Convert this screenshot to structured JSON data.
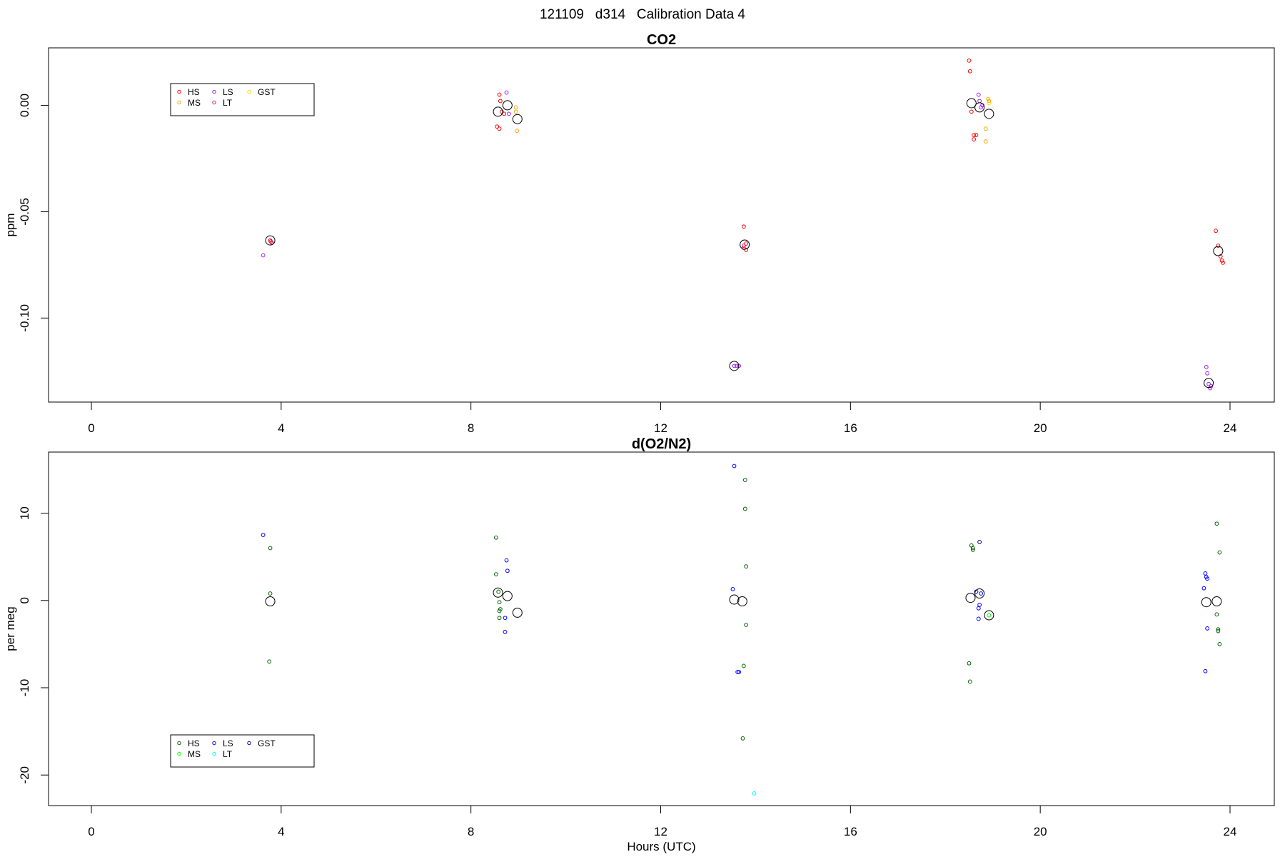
{
  "header": {
    "title": "121109   d314   Calibration Data 4"
  },
  "chart_data": [
    {
      "type": "scatter",
      "title": "CO2",
      "xlabel": "",
      "ylabel": "ppm",
      "xlim": [
        -1.8,
        24.8
      ],
      "ylim": [
        -0.1395,
        0.027
      ],
      "x_ticks": [
        0,
        4,
        8,
        12,
        16,
        20,
        24
      ],
      "y_ticks": [
        -0.1,
        -0.05,
        0.0
      ],
      "y_tick_labels": [
        "-0.10",
        "-0.05",
        "0.00"
      ],
      "grid": false,
      "legend": {
        "placement": "top-left",
        "entries": [
          {
            "label": "HS",
            "color": "#ff0000"
          },
          {
            "label": "LS",
            "color": "#a020f0"
          },
          {
            "label": "GST",
            "color": "#ffd700"
          },
          {
            "label": "MS",
            "color": "#ffa500"
          },
          {
            "label": "LT",
            "color": "#c71585"
          }
        ]
      },
      "series": [
        {
          "name": "HS",
          "color": "#ff0000",
          "points": [
            [
              3.77,
              -0.0635
            ],
            [
              3.8,
              -0.0645
            ],
            [
              8.55,
              -0.01
            ],
            [
              8.6,
              -0.011
            ],
            [
              8.6,
              0.005
            ],
            [
              8.62,
              0.002
            ],
            [
              8.65,
              -0.003
            ],
            [
              8.7,
              -0.004
            ],
            [
              13.75,
              -0.057
            ],
            [
              13.75,
              -0.067
            ],
            [
              13.8,
              -0.065
            ],
            [
              13.8,
              -0.068
            ],
            [
              18.5,
              0.021
            ],
            [
              18.52,
              0.016
            ],
            [
              18.55,
              -0.003
            ],
            [
              18.6,
              -0.014
            ],
            [
              18.6,
              -0.016
            ],
            [
              18.65,
              -0.014
            ],
            [
              23.7,
              -0.059
            ],
            [
              23.75,
              -0.066
            ],
            [
              23.8,
              -0.071
            ],
            [
              23.83,
              -0.073
            ],
            [
              23.85,
              -0.074
            ]
          ]
        },
        {
          "name": "MS",
          "color": "#ffa500",
          "points": [
            [
              8.95,
              -0.001
            ],
            [
              8.95,
              -0.003
            ],
            [
              8.97,
              -0.012
            ],
            [
              18.85,
              -0.011
            ],
            [
              18.85,
              -0.017
            ],
            [
              18.9,
              0.003
            ],
            [
              18.92,
              0.002
            ]
          ]
        },
        {
          "name": "LS",
          "color": "#a020f0",
          "points": [
            [
              3.62,
              -0.0705
            ],
            [
              8.75,
              0.006
            ],
            [
              8.8,
              -0.004
            ],
            [
              13.55,
              -0.1225
            ],
            [
              13.6,
              -0.1225
            ],
            [
              13.65,
              -0.1225
            ],
            [
              18.7,
              0.005
            ],
            [
              18.72,
              0.002
            ],
            [
              18.75,
              -0.001
            ],
            [
              18.78,
              0.0
            ],
            [
              23.5,
              -0.123
            ],
            [
              23.52,
              -0.126
            ],
            [
              23.55,
              -0.131
            ],
            [
              23.58,
              -0.133
            ],
            [
              23.6,
              -0.132
            ]
          ]
        },
        {
          "name": "LT",
          "color": "#c71585",
          "points": [
            [
              3.78,
              -0.064
            ],
            [
              13.75,
              -0.066
            ]
          ]
        },
        {
          "name": "GST",
          "color": "#ffd700",
          "points": [
            [
              18.92,
              0.001
            ]
          ]
        }
      ],
      "means": [
        [
          3.77,
          -0.0635
        ],
        [
          8.57,
          -0.003
        ],
        [
          8.77,
          0.0
        ],
        [
          8.98,
          -0.0065
        ],
        [
          13.55,
          -0.1225
        ],
        [
          13.77,
          -0.0655
        ],
        [
          18.55,
          0.001
        ],
        [
          18.72,
          -0.001
        ],
        [
          18.92,
          -0.004
        ],
        [
          23.55,
          -0.1305
        ],
        [
          23.75,
          -0.0685
        ]
      ]
    },
    {
      "type": "scatter",
      "title": "d(O2/N2)",
      "xlabel": "Hours (UTC)",
      "ylabel": "per meg",
      "xlim": [
        -1.8,
        24.8
      ],
      "ylim": [
        -23.5,
        17.0
      ],
      "x_ticks": [
        0,
        4,
        8,
        12,
        16,
        20,
        24
      ],
      "y_ticks": [
        -20,
        -10,
        0,
        10
      ],
      "y_tick_labels": [
        "-20",
        "-10",
        "0",
        "10"
      ],
      "grid": false,
      "legend": {
        "placement": "bottom-left",
        "entries": [
          {
            "label": "HS",
            "color": "#006400"
          },
          {
            "label": "LS",
            "color": "#0000ff"
          },
          {
            "label": "GST",
            "color": "#00008b"
          },
          {
            "label": "MS",
            "color": "#00ff00"
          },
          {
            "label": "LT",
            "color": "#00ffff"
          }
        ]
      },
      "series": [
        {
          "name": "HS",
          "color": "#006400",
          "points": [
            [
              3.77,
              6.0
            ],
            [
              3.77,
              0.8
            ],
            [
              3.75,
              -7.0
            ],
            [
              8.53,
              7.2
            ],
            [
              8.53,
              3.0
            ],
            [
              8.58,
              1.0
            ],
            [
              8.6,
              -0.2
            ],
            [
              8.6,
              -1.2
            ],
            [
              8.62,
              -1.0
            ],
            [
              8.6,
              -2.0
            ],
            [
              13.78,
              13.8
            ],
            [
              13.78,
              10.5
            ],
            [
              13.8,
              3.9
            ],
            [
              13.8,
              -2.8
            ],
            [
              13.75,
              -7.5
            ],
            [
              13.73,
              -15.8
            ],
            [
              18.5,
              -7.2
            ],
            [
              18.52,
              -9.3
            ],
            [
              18.55,
              6.3
            ],
            [
              18.58,
              5.8
            ],
            [
              18.58,
              6.0
            ],
            [
              23.72,
              8.8
            ],
            [
              23.78,
              5.5
            ],
            [
              23.72,
              -1.6
            ],
            [
              23.75,
              -3.3
            ],
            [
              23.75,
              -3.5
            ],
            [
              23.78,
              -5.0
            ]
          ]
        },
        {
          "name": "MS",
          "color": "#00ff00",
          "points": [
            [
              18.92,
              -1.7
            ]
          ]
        },
        {
          "name": "LS",
          "color": "#0000ff",
          "points": [
            [
              3.62,
              7.5
            ],
            [
              8.75,
              4.6
            ],
            [
              8.77,
              3.4
            ],
            [
              8.72,
              -2.0
            ],
            [
              8.72,
              -3.6
            ],
            [
              13.55,
              15.4
            ],
            [
              13.52,
              1.3
            ],
            [
              13.62,
              -8.2
            ],
            [
              13.65,
              -8.2
            ],
            [
              18.65,
              1.0
            ],
            [
              18.7,
              -0.9
            ],
            [
              18.7,
              -2.1
            ],
            [
              18.72,
              -0.5
            ],
            [
              18.75,
              0.8
            ],
            [
              23.45,
              1.4
            ],
            [
              23.48,
              3.1
            ],
            [
              23.5,
              2.7
            ],
            [
              23.52,
              2.5
            ],
            [
              23.52,
              -3.2
            ],
            [
              23.48,
              -8.1
            ]
          ]
        },
        {
          "name": "GST",
          "color": "#00008b",
          "points": [
            [
              18.72,
              6.7
            ]
          ]
        },
        {
          "name": "LT",
          "color": "#00ffff",
          "points": [
            [
              13.97,
              -22.1
            ]
          ]
        }
      ],
      "means": [
        [
          3.77,
          -0.1
        ],
        [
          8.57,
          0.9
        ],
        [
          8.77,
          0.5
        ],
        [
          8.98,
          -1.4
        ],
        [
          13.55,
          0.1
        ],
        [
          13.72,
          -0.1
        ],
        [
          18.53,
          0.3
        ],
        [
          18.72,
          0.8
        ],
        [
          18.92,
          -1.7
        ],
        [
          23.5,
          -0.2
        ],
        [
          23.72,
          -0.1
        ]
      ]
    }
  ]
}
